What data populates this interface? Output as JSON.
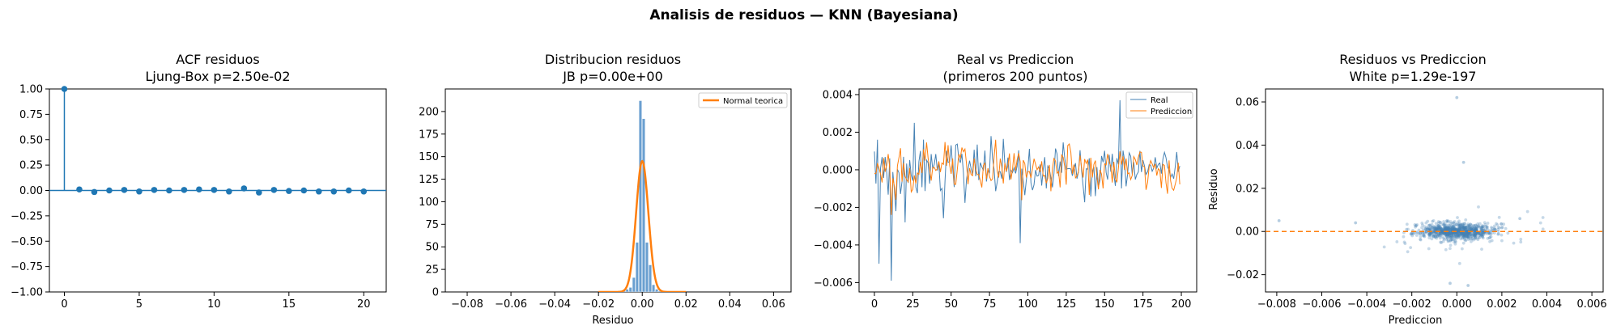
{
  "figure": {
    "suptitle": "Analisis de residuos — KNN (Bayesiana)"
  },
  "colors": {
    "blue": "#1f77b4",
    "steel": "#4682b4",
    "orange": "#ff7f0e",
    "hist": "#6a9fd0"
  },
  "chart_data": [
    {
      "type": "stem",
      "title_line1": "ACF residuos",
      "title_line2": "Ljung-Box p=2.50e-02",
      "xlabel": "",
      "ylabel": "",
      "xlim": [
        -1,
        21.5
      ],
      "ylim": [
        -1.0,
        1.0
      ],
      "xticks": [
        0,
        5,
        10,
        15,
        20
      ],
      "xtick_labels": [
        "0",
        "5",
        "10",
        "15",
        "20"
      ],
      "yticks": [
        1.0,
        0.75,
        0.5,
        0.25,
        0.0,
        -0.25,
        -0.5,
        -0.75,
        -1.0
      ],
      "ytick_labels": [
        "1.00",
        "0.75",
        "0.50",
        "0.25",
        "0.00",
        "−0.25",
        "−0.50",
        "−0.75",
        "−1.00"
      ],
      "lags": [
        0,
        1,
        2,
        3,
        4,
        5,
        6,
        7,
        8,
        9,
        10,
        11,
        12,
        13,
        14,
        15,
        16,
        17,
        18,
        19,
        20
      ],
      "acf": [
        1.0,
        0.01,
        -0.015,
        0.0,
        0.005,
        -0.01,
        0.005,
        0.0,
        0.005,
        0.01,
        0.005,
        -0.01,
        0.02,
        -0.02,
        0.005,
        -0.005,
        0.0,
        -0.01,
        -0.01,
        0.0,
        -0.01
      ]
    },
    {
      "type": "histogram",
      "title_line1": "Distribucion residuos",
      "title_line2": "JB p=0.00e+00",
      "xlabel": "Residuo",
      "ylabel": "",
      "xlim": [
        -0.09,
        0.068
      ],
      "ylim": [
        0,
        225
      ],
      "xticks": [
        -0.08,
        -0.06,
        -0.04,
        -0.02,
        0.0,
        0.02,
        0.04,
        0.06
      ],
      "xtick_labels": [
        "−0.08",
        "−0.06",
        "−0.04",
        "−0.02",
        "0.00",
        "0.02",
        "0.04",
        "0.06"
      ],
      "yticks": [
        0,
        25,
        50,
        75,
        100,
        125,
        150,
        175,
        200
      ],
      "ytick_labels": [
        "0",
        "25",
        "50",
        "75",
        "100",
        "125",
        "150",
        "175",
        "200"
      ],
      "bin_width": 0.0015,
      "bins": [
        {
          "x": -0.0105,
          "h": 1
        },
        {
          "x": -0.009,
          "h": 2
        },
        {
          "x": -0.0075,
          "h": 3
        },
        {
          "x": -0.006,
          "h": 5
        },
        {
          "x": -0.0045,
          "h": 16
        },
        {
          "x": -0.003,
          "h": 55
        },
        {
          "x": -0.0015,
          "h": 212
        },
        {
          "x": 0.0,
          "h": 192
        },
        {
          "x": 0.0015,
          "h": 55
        },
        {
          "x": 0.003,
          "h": 30
        },
        {
          "x": 0.0045,
          "h": 8
        },
        {
          "x": 0.006,
          "h": 3
        },
        {
          "x": 0.0075,
          "h": 1
        }
      ],
      "normal_peak": 145,
      "normal_mean": 0.0,
      "normal_sd": 0.0028,
      "legend": [
        {
          "label": "Normal teorica",
          "color": "#ff7f0e"
        }
      ],
      "legend_position": "upper right"
    },
    {
      "type": "line",
      "title_line1": "Real vs Prediccion",
      "title_line2": "(primeros 200 puntos)",
      "xlabel": "",
      "ylabel": "",
      "xlim": [
        -10,
        210
      ],
      "ylim": [
        -0.0065,
        0.0043
      ],
      "xticks": [
        0,
        25,
        50,
        75,
        100,
        125,
        150,
        175,
        200
      ],
      "xtick_labels": [
        "0",
        "25",
        "50",
        "75",
        "100",
        "125",
        "150",
        "175",
        "200"
      ],
      "yticks": [
        0.004,
        0.002,
        0.0,
        -0.002,
        -0.004,
        -0.006
      ],
      "ytick_labels": [
        "0.004",
        "0.002",
        "0.000",
        "−0.002",
        "−0.004",
        "−0.006"
      ],
      "legend": [
        {
          "label": "Real",
          "color": "#4682b4"
        },
        {
          "label": "Prediccion",
          "color": "#ff7f0e"
        }
      ],
      "legend_position": "upper right",
      "series_note": "200 points per series"
    },
    {
      "type": "scatter",
      "title_line1": "Residuos vs Prediccion",
      "title_line2": "White p=1.29e-197",
      "xlabel": "Prediccion",
      "ylabel": "Residuo",
      "xlim": [
        -0.0085,
        0.0065
      ],
      "ylim": [
        -0.028,
        0.066
      ],
      "xticks": [
        -0.008,
        -0.006,
        -0.004,
        -0.002,
        0.0,
        0.002,
        0.004,
        0.006
      ],
      "xtick_labels": [
        "−0.008",
        "−0.006",
        "−0.004",
        "−0.002",
        "0.000",
        "0.002",
        "0.004",
        "0.006"
      ],
      "yticks": [
        0.06,
        0.04,
        0.02,
        0.0,
        -0.02
      ],
      "ytick_labels": [
        "0.06",
        "0.04",
        "0.02",
        "0.00",
        "−0.02"
      ],
      "hline": 0.0,
      "outliers": [
        {
          "x": 0.0,
          "y": 0.062
        },
        {
          "x": 0.0003,
          "y": 0.032
        },
        {
          "x": -0.0079,
          "y": 0.005
        },
        {
          "x": -0.0045,
          "y": 0.004
        },
        {
          "x": -0.0003,
          "y": -0.024
        },
        {
          "x": 0.0005,
          "y": -0.025
        },
        {
          "x": 0.0028,
          "y": 0.006
        }
      ]
    }
  ]
}
